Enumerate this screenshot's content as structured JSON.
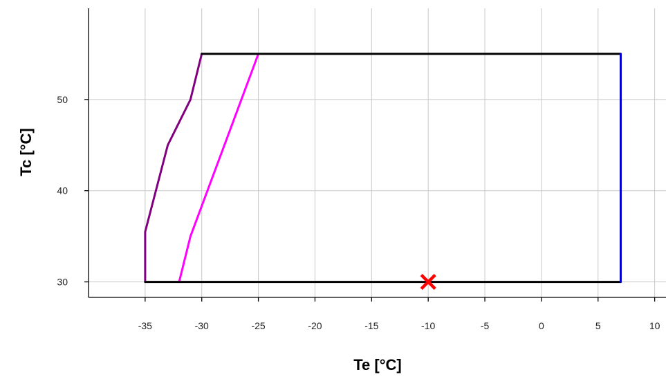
{
  "chart_data": {
    "type": "line",
    "title": "",
    "xlabel": "Te [°C]",
    "ylabel": "Tc [°C]",
    "xlim": [
      -40,
      11
    ],
    "ylim": [
      28.3,
      60
    ],
    "grid": true,
    "legend": "none",
    "x_ticks": [
      -35,
      -30,
      -25,
      -20,
      -15,
      -10,
      -5,
      0,
      5,
      10
    ],
    "y_ticks": [
      30,
      40,
      50
    ],
    "series": [
      {
        "color": "#800080",
        "points": [
          [
            -35,
            30
          ],
          [
            -35,
            35.5
          ],
          [
            -33,
            45
          ],
          [
            -31,
            50
          ],
          [
            -30,
            55
          ]
        ]
      },
      {
        "color": "#ff00ff",
        "points": [
          [
            -32,
            30
          ],
          [
            -31,
            35
          ],
          [
            -25,
            55
          ]
        ]
      },
      {
        "color": "#000000",
        "points": [
          [
            -30,
            55
          ],
          [
            7,
            55
          ]
        ]
      },
      {
        "color": "#000000",
        "points": [
          [
            -35,
            30
          ],
          [
            7,
            30
          ]
        ]
      },
      {
        "color": "#0000cc",
        "points": [
          [
            7,
            30
          ],
          [
            7,
            55
          ]
        ]
      }
    ],
    "markers": [
      {
        "x": -10,
        "y": 30,
        "symbol": "x",
        "color": "#ff0000"
      }
    ]
  }
}
